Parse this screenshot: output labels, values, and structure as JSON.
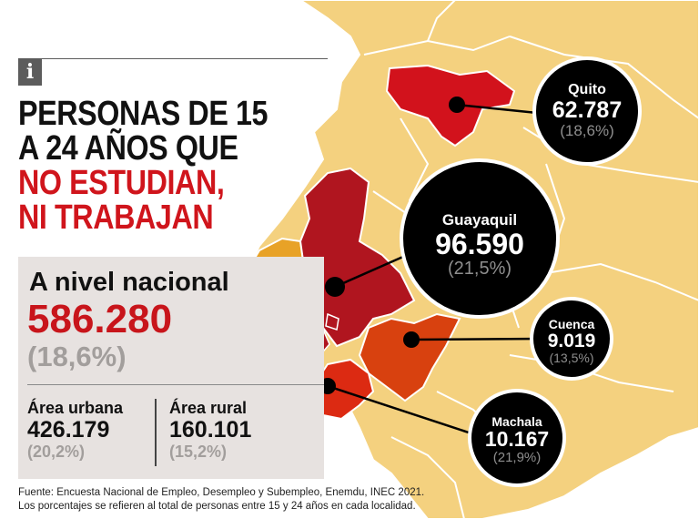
{
  "header": {
    "info_icon": "i",
    "title_lines": [
      "PERSONAS DE 15",
      "A 24 AÑOS QUE",
      "NO ESTUDIAN,",
      "NI TRABAJAN"
    ]
  },
  "national": {
    "label": "A nivel nacional",
    "value": "586.280",
    "percent": "(18,6%)",
    "urban": {
      "label": "Área urbana",
      "value": "426.179",
      "percent": "(20,2%)"
    },
    "rural": {
      "label": "Área rural",
      "value": "160.101",
      "percent": "(15,2%)"
    }
  },
  "cities": [
    {
      "name": "Quito",
      "value": "62.787",
      "percent": "(18,6%)"
    },
    {
      "name": "Guayaquil",
      "value": "96.590",
      "percent": "(21,5%)"
    },
    {
      "name": "Cuenca",
      "value": "9.019",
      "percent": "(13,5%)"
    },
    {
      "name": "Machala",
      "value": "10.167",
      "percent": "(21,9%)"
    }
  ],
  "footer": {
    "source": "Fuente: Encuesta Nacional de Empleo, Desempleo y Subempleo, Enemdu, INEC 2021.",
    "note": "Los porcentajes se refieren al total de personas entre 15 y 24 años en cada localidad."
  },
  "colors": {
    "title_dark": "#111111",
    "title_red": "#d0151c",
    "national_value": "#c8151b",
    "region_light": "#f4d17f",
    "region_orange": "#e8a227",
    "region_darkred": "#b0151f",
    "region_red": "#d2121c",
    "region_redorange": "#d8410f",
    "bubble": "#000000"
  }
}
